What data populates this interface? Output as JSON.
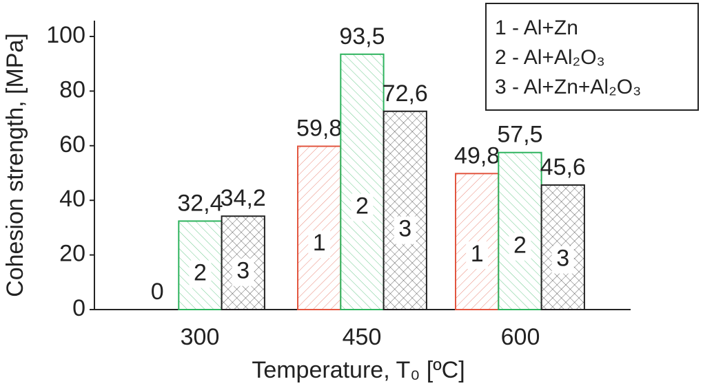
{
  "chart_data": {
    "type": "bar",
    "x_label": "Temperature, T₀ [ºC]",
    "y_label": "Cohesion strength, [MPa]",
    "categories": [
      "300",
      "450",
      "600"
    ],
    "series": [
      {
        "name": "1 - Al+Zn",
        "color": "#e2553f",
        "values": [
          0,
          59.8,
          49.8
        ],
        "value_labels": [
          "0",
          "59,8",
          "49,8"
        ],
        "bar_labels": [
          null,
          "1",
          "1"
        ]
      },
      {
        "name": "2 - Al+Al₂O₃",
        "color": "#2db35d",
        "values": [
          32.4,
          93.5,
          57.5
        ],
        "value_labels": [
          "32,4",
          "93,5",
          "57,5"
        ],
        "bar_labels": [
          "2",
          "2",
          "2"
        ]
      },
      {
        "name": "3 - Al+Zn+Al₂O₃",
        "color": "#222222",
        "values": [
          34.2,
          72.6,
          45.6
        ],
        "value_labels": [
          "34,2",
          "72,6",
          "45,6"
        ],
        "bar_labels": [
          "3",
          "3",
          "3"
        ]
      }
    ],
    "ylim": [
      0,
      100
    ],
    "yticks": [
      0,
      20,
      40,
      60,
      80,
      100
    ],
    "legend": "top-right"
  }
}
